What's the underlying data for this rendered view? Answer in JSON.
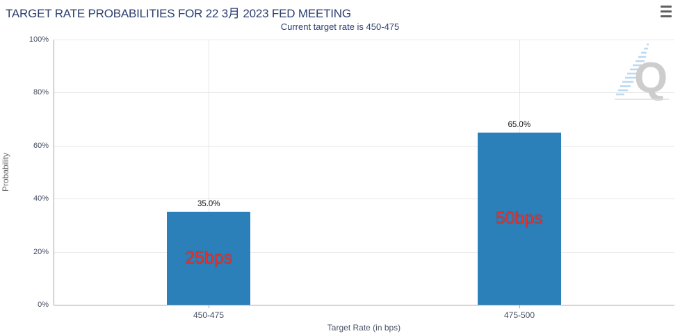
{
  "header": {
    "title": "TARGET RATE PROBABILITIES FOR 22 3月 2023 FED MEETING",
    "subtitle": "Current target rate is 450-475"
  },
  "chart_data": {
    "type": "bar",
    "title": "TARGET RATE PROBABILITIES FOR 22 3月 2023 FED MEETING",
    "subtitle": "Current target rate is 450-475",
    "categories": [
      "450-475",
      "475-500"
    ],
    "values": [
      35.0,
      65.0
    ],
    "value_labels": [
      "35.0%",
      "65.0%"
    ],
    "bar_annotations": [
      "25bps",
      "50bps"
    ],
    "xlabel": "Target Rate (in bps)",
    "ylabel": "Probability",
    "ylim": [
      0,
      100
    ],
    "yticks_top_to_bottom": [
      "100%",
      "80%",
      "60%",
      "40%",
      "20%",
      "0%"
    ],
    "grid": true,
    "legend": "none",
    "bar_color": "#2b80ba",
    "annotation_color": "#e8332e",
    "title_color": "#2b3e6f"
  },
  "watermark": {
    "letter": "Q"
  }
}
